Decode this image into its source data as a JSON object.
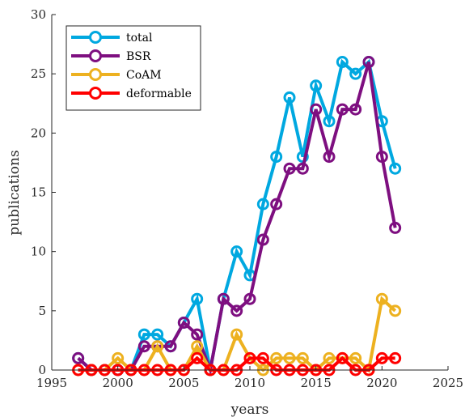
{
  "chart_data": {
    "type": "line",
    "xlabel": "years",
    "ylabel": "publications",
    "xlim": [
      1995,
      2025
    ],
    "ylim": [
      0,
      30
    ],
    "xticks": [
      1995,
      2000,
      2005,
      2010,
      2015,
      2020,
      2025
    ],
    "yticks": [
      0,
      5,
      10,
      15,
      20,
      25,
      30
    ],
    "grid": false,
    "legend_position": "top-left",
    "x": [
      1997,
      1998,
      1999,
      2000,
      2001,
      2002,
      2003,
      2004,
      2005,
      2006,
      2007,
      2008,
      2009,
      2010,
      2011,
      2012,
      2013,
      2014,
      2015,
      2016,
      2017,
      2018,
      2019,
      2020,
      2021
    ],
    "series": [
      {
        "name": "total",
        "color": "#00A8E0",
        "values": [
          1,
          0,
          0,
          0,
          0,
          3,
          3,
          2,
          4,
          6,
          0,
          6,
          10,
          8,
          14,
          18,
          23,
          18,
          24,
          21,
          26,
          25,
          26,
          21,
          17
        ]
      },
      {
        "name": "BSR",
        "color": "#7E0F80",
        "values": [
          1,
          0,
          0,
          0,
          0,
          2,
          2,
          2,
          4,
          3,
          0,
          6,
          5,
          6,
          11,
          14,
          17,
          17,
          22,
          18,
          22,
          22,
          26,
          18,
          12
        ]
      },
      {
        "name": "CoAM",
        "color": "#EDB120",
        "values": [
          0,
          0,
          0,
          1,
          0,
          0,
          2,
          0,
          0,
          2,
          0,
          0,
          3,
          1,
          0,
          1,
          1,
          1,
          0,
          1,
          1,
          1,
          0,
          6,
          5
        ]
      },
      {
        "name": "deformable",
        "color": "#FF0000",
        "values": [
          0,
          0,
          0,
          0,
          0,
          0,
          0,
          0,
          0,
          1,
          0,
          0,
          0,
          1,
          1,
          0,
          0,
          0,
          0,
          0,
          1,
          0,
          0,
          1,
          1
        ]
      }
    ]
  }
}
